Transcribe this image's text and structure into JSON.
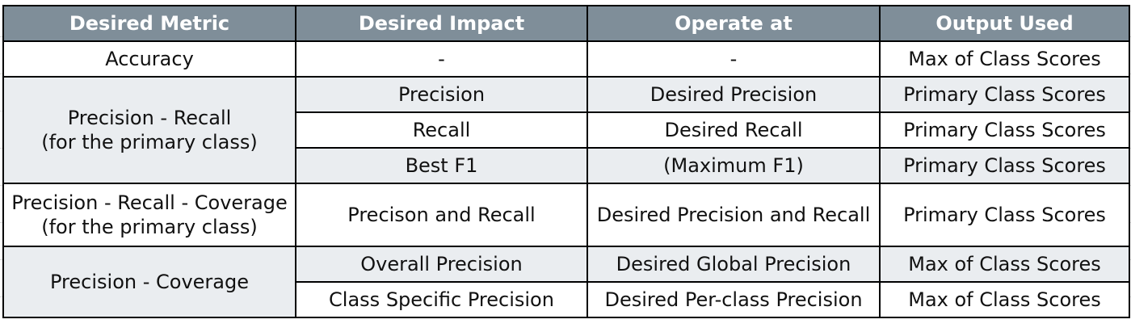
{
  "headers": [
    "Desired Metric",
    "Desired Impact",
    "Operate at",
    "Output Used"
  ],
  "rows": {
    "accuracy": {
      "metric": "Accuracy",
      "impact": "-",
      "operate": "-",
      "output": "Max of Class Scores"
    },
    "precision_recall": {
      "metric_line1": "Precision - Recall",
      "metric_line2": "(for the primary class)",
      "items": [
        {
          "impact": "Precision",
          "operate": "Desired Precision",
          "output": "Primary Class Scores"
        },
        {
          "impact": "Recall",
          "operate": "Desired Recall",
          "output": "Primary Class Scores"
        },
        {
          "impact": "Best F1",
          "operate": "(Maximum F1)",
          "output": "Primary Class Scores"
        }
      ]
    },
    "precision_recall_coverage": {
      "metric_line1": "Precision - Recall - Coverage",
      "metric_line2": "(for the primary class)",
      "impact": "Precison and Recall",
      "operate": "Desired Precision and Recall",
      "output": "Primary Class Scores"
    },
    "precision_coverage": {
      "metric": "Precision - Coverage",
      "items": [
        {
          "impact": "Overall Precision",
          "operate": "Desired Global Precision",
          "output": "Max of Class Scores"
        },
        {
          "impact": "Class Specific Precision",
          "operate": "Desired Per-class Precision",
          "output": "Max of Class Scores"
        }
      ]
    }
  },
  "colors": {
    "header_bg": "#7f8e99",
    "header_text": "#ffffff",
    "shaded_row": "#eaedf0",
    "border": "#000000"
  }
}
